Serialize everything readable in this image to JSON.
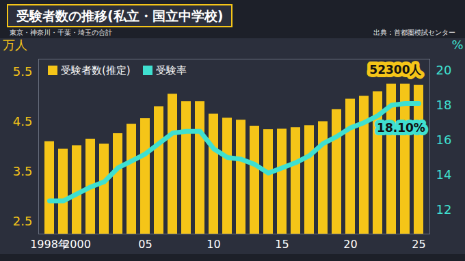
{
  "chart_data": {
    "type": "bar",
    "title": "受験者数の推移(私立・国立中学校)",
    "subtitle": "東京・神奈川・千葉・埼玉の合計",
    "source": "出典：首都圏模試センター",
    "categories": [
      "1998年",
      null,
      "2000",
      null,
      null,
      null,
      null,
      "05",
      null,
      null,
      null,
      null,
      "10",
      null,
      null,
      null,
      null,
      "15",
      null,
      null,
      null,
      null,
      "20",
      null,
      null,
      null,
      null,
      "25"
    ],
    "series": [
      {
        "name": "受験者数(推定)",
        "type": "bar",
        "color": "#f5c518",
        "values": [
          4.1,
          3.95,
          4.02,
          4.15,
          4.05,
          4.26,
          4.45,
          4.56,
          4.8,
          5.05,
          4.9,
          4.9,
          4.65,
          4.57,
          4.53,
          4.41,
          4.34,
          4.35,
          4.38,
          4.42,
          4.5,
          4.74,
          4.95,
          5.01,
          5.1,
          5.25,
          5.25,
          5.23
        ],
        "value_labels": [
          null,
          null,
          null,
          null,
          null,
          null,
          null,
          null,
          null,
          null,
          null,
          null,
          null,
          null,
          null,
          null,
          null,
          null,
          null,
          null,
          null,
          null,
          null,
          null,
          null,
          null,
          null,
          "52300人"
        ]
      },
      {
        "name": "受験率",
        "type": "line",
        "axis": "y2",
        "color": "#3fe0d0",
        "values": [
          12.5,
          12.5,
          12.9,
          13.3,
          13.6,
          14.4,
          14.8,
          15.2,
          15.8,
          16.4,
          16.5,
          16.5,
          15.5,
          15.0,
          14.9,
          14.6,
          14.1,
          14.4,
          14.7,
          15.1,
          15.8,
          16.2,
          16.7,
          17.0,
          17.4,
          18.0,
          18.1,
          18.1
        ],
        "value_labels": [
          null,
          null,
          null,
          null,
          null,
          null,
          null,
          null,
          null,
          null,
          null,
          null,
          null,
          null,
          null,
          null,
          null,
          null,
          null,
          null,
          null,
          null,
          null,
          null,
          null,
          null,
          null,
          "18.10%"
        ]
      }
    ],
    "ylabel": "万人",
    "ylim": [
      2.25,
      5.75
    ],
    "yticks": [
      2.5,
      3.5,
      4.5,
      5.5
    ],
    "y2label": "%",
    "y2lim": [
      10.6,
      20.65
    ],
    "y2ticks": [
      12,
      14,
      16,
      18,
      20
    ],
    "legend": "top-left",
    "grid": false
  }
}
